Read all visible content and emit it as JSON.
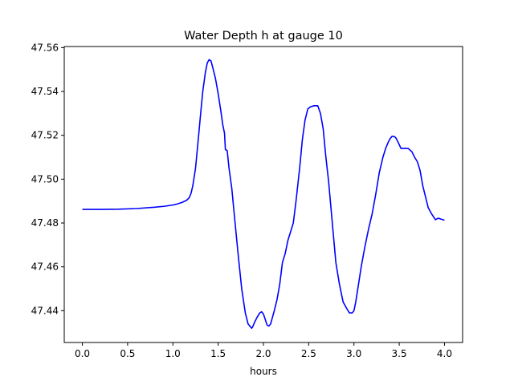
{
  "chart_data": {
    "type": "line",
    "title": "Water Depth h at gauge 10",
    "xlabel": "hours",
    "ylabel": "",
    "xlim": [
      -0.2,
      4.2
    ],
    "ylim": [
      47.4255,
      47.5605
    ],
    "x_ticks": [
      0.0,
      0.5,
      1.0,
      1.5,
      2.0,
      2.5,
      3.0,
      3.5,
      4.0
    ],
    "x_tick_labels": [
      "0.0",
      "0.5",
      "1.0",
      "1.5",
      "2.0",
      "2.5",
      "3.0",
      "3.5",
      "4.0"
    ],
    "y_ticks": [
      47.44,
      47.46,
      47.48,
      47.5,
      47.52,
      47.54,
      47.56
    ],
    "y_tick_labels": [
      "47.44",
      "47.46",
      "47.48",
      "47.50",
      "47.52",
      "47.54",
      "47.56"
    ],
    "grid": false,
    "series": [
      {
        "color": "#0000ff",
        "x": [
          0.0,
          0.2,
          0.4,
          0.6,
          0.8,
          0.9,
          1.0,
          1.05,
          1.1,
          1.15,
          1.18,
          1.2,
          1.22,
          1.25,
          1.28,
          1.3,
          1.33,
          1.36,
          1.38,
          1.4,
          1.42,
          1.44,
          1.47,
          1.5,
          1.53,
          1.55,
          1.57,
          1.58,
          1.6,
          1.62,
          1.65,
          1.68,
          1.72,
          1.76,
          1.8,
          1.83,
          1.85,
          1.87,
          1.88,
          1.9,
          1.93,
          1.96,
          1.98,
          2.0,
          2.02,
          2.04,
          2.06,
          2.08,
          2.1,
          2.12,
          2.15,
          2.18,
          2.21,
          2.24,
          2.27,
          2.3,
          2.33,
          2.36,
          2.4,
          2.43,
          2.46,
          2.49,
          2.52,
          2.56,
          2.6,
          2.63,
          2.66,
          2.69,
          2.72,
          2.75,
          2.8,
          2.84,
          2.88,
          2.92,
          2.95,
          2.98,
          3.0,
          3.02,
          3.05,
          3.08,
          3.12,
          3.16,
          3.2,
          3.24,
          3.28,
          3.32,
          3.35,
          3.38,
          3.4,
          3.42,
          3.44,
          3.46,
          3.48,
          3.52,
          3.56,
          3.6,
          3.64,
          3.67,
          3.7,
          3.73,
          3.76,
          3.79,
          3.82,
          3.86,
          3.9,
          3.93,
          3.96,
          4.0
        ],
        "y": [
          47.4862,
          47.4862,
          47.4863,
          47.4866,
          47.4872,
          47.4876,
          47.4882,
          47.4887,
          47.4894,
          47.4903,
          47.4915,
          47.4935,
          47.497,
          47.505,
          47.518,
          47.527,
          47.54,
          47.549,
          47.553,
          47.5545,
          47.554,
          47.551,
          47.546,
          47.539,
          47.531,
          47.525,
          47.521,
          47.5135,
          47.513,
          47.505,
          47.496,
          47.483,
          47.466,
          47.45,
          47.439,
          47.434,
          47.433,
          47.432,
          47.4325,
          47.4345,
          47.437,
          47.439,
          47.4395,
          47.4385,
          47.436,
          47.4335,
          47.433,
          47.434,
          47.437,
          47.44,
          47.445,
          47.452,
          47.462,
          47.466,
          47.472,
          47.476,
          47.48,
          47.49,
          47.505,
          47.518,
          47.527,
          47.532,
          47.533,
          47.5335,
          47.5335,
          47.53,
          47.523,
          47.51,
          47.499,
          47.485,
          47.462,
          47.452,
          47.444,
          47.441,
          47.439,
          47.439,
          47.44,
          47.444,
          47.452,
          47.46,
          47.469,
          47.477,
          47.484,
          47.493,
          47.503,
          47.51,
          47.514,
          47.517,
          47.5185,
          47.5195,
          47.5195,
          47.519,
          47.5175,
          47.514,
          47.514,
          47.514,
          47.5125,
          47.51,
          47.508,
          47.504,
          47.497,
          47.492,
          47.487,
          47.484,
          47.4815,
          47.4822,
          47.4818,
          47.4813
        ]
      }
    ]
  }
}
